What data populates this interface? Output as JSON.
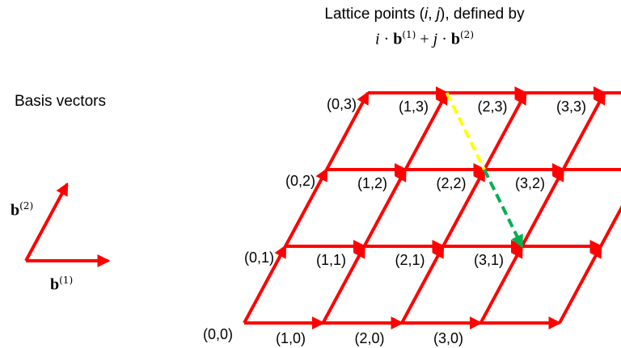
{
  "title": {
    "line1_prefix": "Lattice points (",
    "i": "i",
    "comma": ", ",
    "j": "j",
    "line1_suffix": "), defined by",
    "formula_i": "i",
    "dot": " · ",
    "b": "b",
    "sup1": "(1)",
    "plus": " + ",
    "formula_j": "j",
    "sup2": "(2)"
  },
  "basis": {
    "heading": "Basis vectors",
    "b1": {
      "base": "b",
      "sup": "(1)"
    },
    "b2": {
      "base": "b",
      "sup": "(2)"
    }
  },
  "lattice": {
    "i_range": [
      0,
      3
    ],
    "j_range": [
      0,
      3
    ],
    "point_labels": [
      {
        "i": 0,
        "j": 0,
        "text": "(0,0)"
      },
      {
        "i": 1,
        "j": 0,
        "text": "(1,0)"
      },
      {
        "i": 2,
        "j": 0,
        "text": "(2,0)"
      },
      {
        "i": 3,
        "j": 0,
        "text": "(3,0)"
      },
      {
        "i": 0,
        "j": 1,
        "text": "(0,1)"
      },
      {
        "i": 1,
        "j": 1,
        "text": "(1,1)"
      },
      {
        "i": 2,
        "j": 1,
        "text": "(2,1)"
      },
      {
        "i": 3,
        "j": 1,
        "text": "(3,1)"
      },
      {
        "i": 0,
        "j": 2,
        "text": "(0,2)"
      },
      {
        "i": 1,
        "j": 2,
        "text": "(1,2)"
      },
      {
        "i": 2,
        "j": 2,
        "text": "(2,2)"
      },
      {
        "i": 3,
        "j": 2,
        "text": "(3,2)"
      },
      {
        "i": 0,
        "j": 3,
        "text": "(0,3)"
      },
      {
        "i": 1,
        "j": 3,
        "text": "(1,3)"
      },
      {
        "i": 2,
        "j": 3,
        "text": "(2,3)"
      },
      {
        "i": 3,
        "j": 3,
        "text": "(3,3)"
      }
    ],
    "difference_vector": {
      "from": [
        1,
        3
      ],
      "to": [
        3,
        1
      ],
      "colors": [
        "#ffff00",
        "#00b050"
      ]
    },
    "arrow_color": "#ff0000"
  }
}
